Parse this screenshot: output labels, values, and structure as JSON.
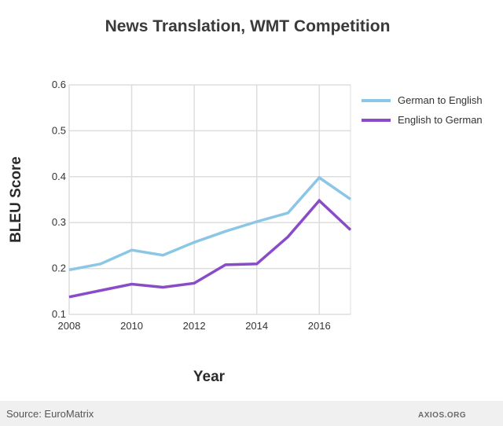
{
  "chart_data": {
    "type": "line",
    "title": "News Translation, WMT Competition",
    "xlabel": "Year",
    "ylabel": "BLEU Score",
    "x": [
      2008,
      2009,
      2010,
      2011,
      2012,
      2013,
      2014,
      2015,
      2016,
      2017
    ],
    "xticks": [
      "2008",
      "2010",
      "2012",
      "2014",
      "2016"
    ],
    "yticks": [
      "0.1",
      "0.2",
      "0.3",
      "0.4",
      "0.5",
      "0.6"
    ],
    "ylim": [
      0.1,
      0.6
    ],
    "xlim": [
      2008,
      2017
    ],
    "grid": true,
    "legend_position": "right",
    "series": [
      {
        "name": "German to English",
        "color": "#8cc6e6",
        "values": [
          0.197,
          0.21,
          0.24,
          0.229,
          0.257,
          0.281,
          0.302,
          0.321,
          0.398,
          0.351
        ]
      },
      {
        "name": "English to German",
        "color": "#8a4bc8",
        "values": [
          0.138,
          0.152,
          0.166,
          0.159,
          0.168,
          0.208,
          0.21,
          0.269,
          0.348,
          0.284
        ]
      }
    ]
  },
  "footer": {
    "source": "Source: EuroMatrix",
    "watermark": "AXIOS.ORG"
  }
}
